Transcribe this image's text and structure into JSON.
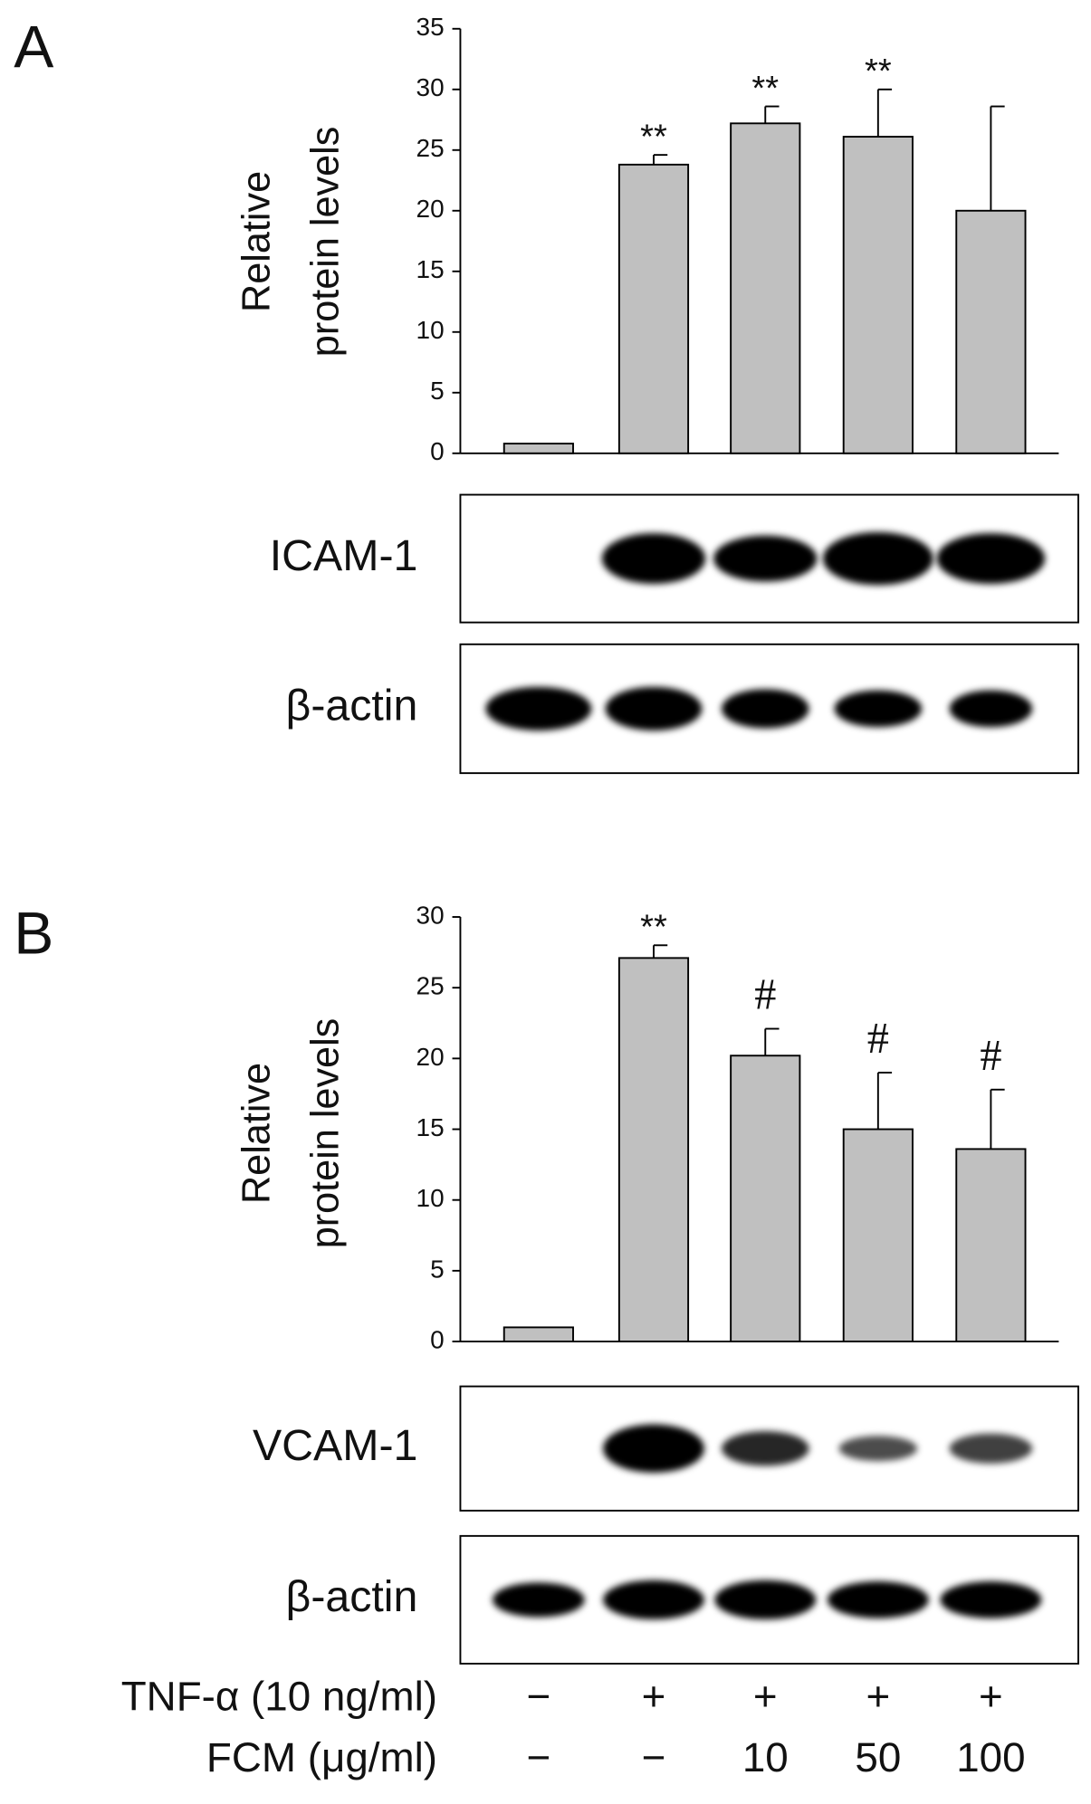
{
  "chart_data": [
    {
      "type": "bar",
      "panel": "A",
      "y_label": [
        "Relative",
        "protein levels"
      ],
      "values": [
        0.8,
        23.8,
        27.2,
        26.1,
        20.0
      ],
      "errors": [
        null,
        0.8,
        1.4,
        3.9,
        8.6
      ],
      "annotations": [
        null,
        "**",
        "**",
        "**",
        null
      ],
      "color": "#c0c0c0",
      "ylim": [
        0,
        35
      ],
      "yticks": [
        0,
        5,
        10,
        15,
        20,
        25,
        30,
        35
      ],
      "blots": [
        {
          "label": "ICAM-1"
        },
        {
          "label": "β-actin"
        }
      ]
    },
    {
      "type": "bar",
      "panel": "B",
      "y_label": [
        "Relative",
        "protein levels"
      ],
      "values": [
        1.0,
        27.1,
        20.2,
        15.0,
        13.6
      ],
      "errors": [
        null,
        0.9,
        1.9,
        4.0,
        4.2
      ],
      "annotations": [
        null,
        "**",
        "#",
        "#",
        "#"
      ],
      "color": "#c0c0c0",
      "ylim": [
        0,
        30
      ],
      "yticks": [
        0,
        5,
        10,
        15,
        20,
        25,
        30
      ],
      "blots": [
        {
          "label": "VCAM-1"
        },
        {
          "label": "β-actin"
        }
      ]
    }
  ],
  "conditions": [
    {
      "label": "TNF-α (10 ng/ml)",
      "values": [
        "−",
        "+",
        "+",
        "+",
        "+"
      ]
    },
    {
      "label": "FCM (μg/ml)",
      "values": [
        "−",
        "−",
        "10",
        "50",
        "100"
      ]
    }
  ]
}
